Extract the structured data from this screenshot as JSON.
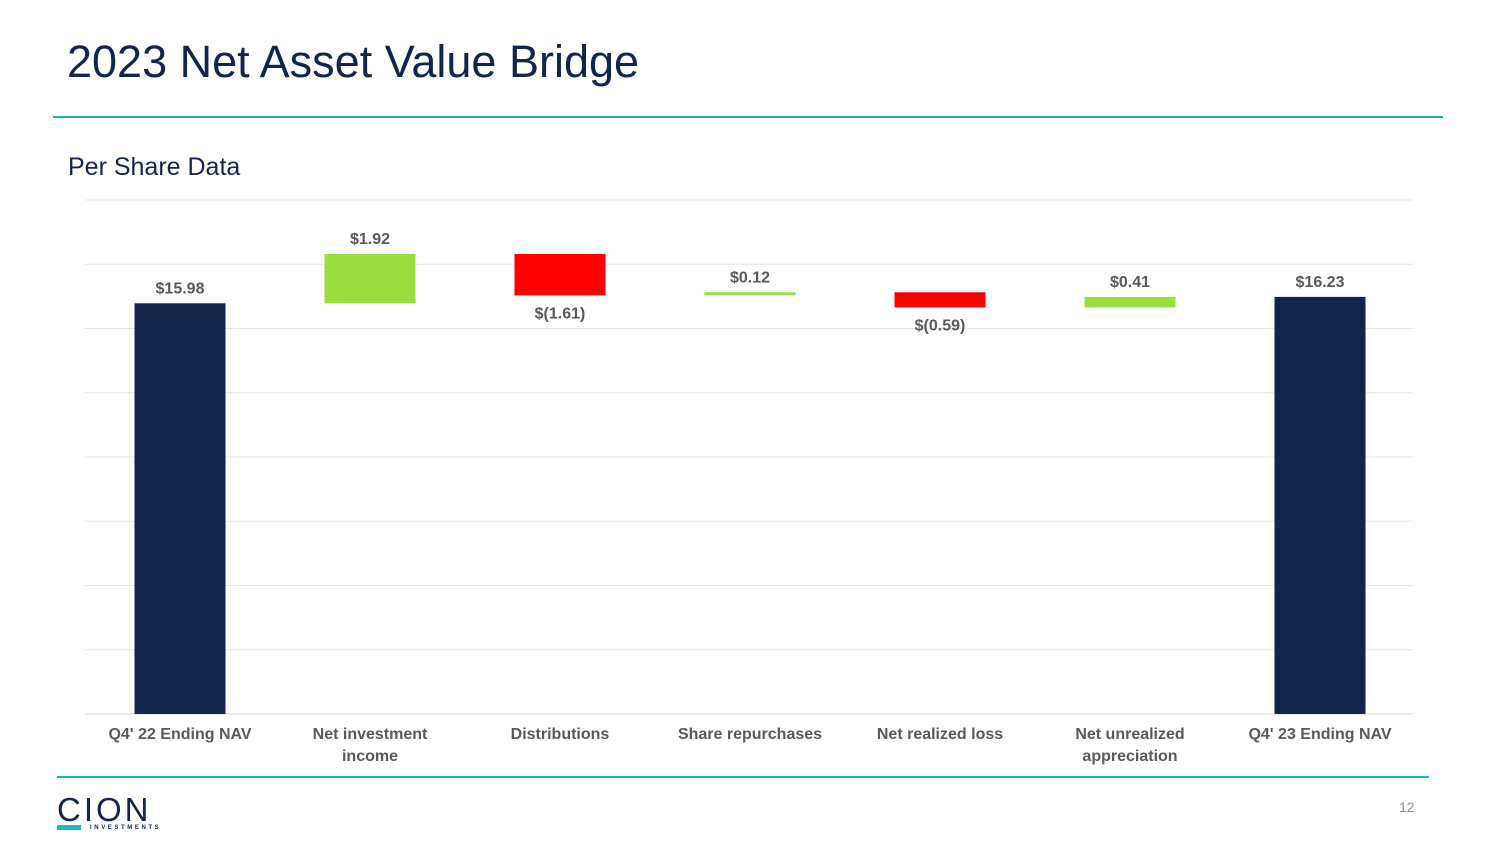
{
  "slide": {
    "title": "2023 Net Asset Value Bridge",
    "subtitle": "Per Share Data",
    "page_number": "12"
  },
  "logo": {
    "name": "CION",
    "tagline": "INVESTMENTS"
  },
  "colors": {
    "title": "#14254c",
    "accent": "#1fb8b8",
    "total": "#14254c",
    "increase": "#9bde42",
    "decrease": "#ff0000",
    "label": "#595959",
    "grid": "#e6e6e6"
  },
  "chart_data": {
    "type": "waterfall",
    "title": "Per Share Data",
    "ylim": [
      0,
      20
    ],
    "grid": true,
    "categories": [
      "Q4' 22 Ending NAV",
      "Net investment income",
      "Distributions",
      "Share repurchases",
      "Net realized loss",
      "Net unrealized appreciation",
      "Q4' 23 Ending NAV"
    ],
    "category_lines": [
      [
        "Q4' 22 Ending NAV"
      ],
      [
        "Net investment",
        "income"
      ],
      [
        "Distributions"
      ],
      [
        "Share repurchases"
      ],
      [
        "Net realized loss"
      ],
      [
        "Net unrealized",
        "appreciation"
      ],
      [
        "Q4' 23 Ending NAV"
      ]
    ],
    "values": [
      15.98,
      1.92,
      -1.61,
      0.12,
      -0.59,
      0.41,
      16.23
    ],
    "kinds": [
      "total",
      "increase",
      "decrease",
      "increase",
      "decrease",
      "increase",
      "total"
    ],
    "labels": [
      "$15.98",
      "$1.92",
      "$(1.61)",
      "$0.12",
      "$(0.59)",
      "$0.41",
      "$16.23"
    ]
  }
}
